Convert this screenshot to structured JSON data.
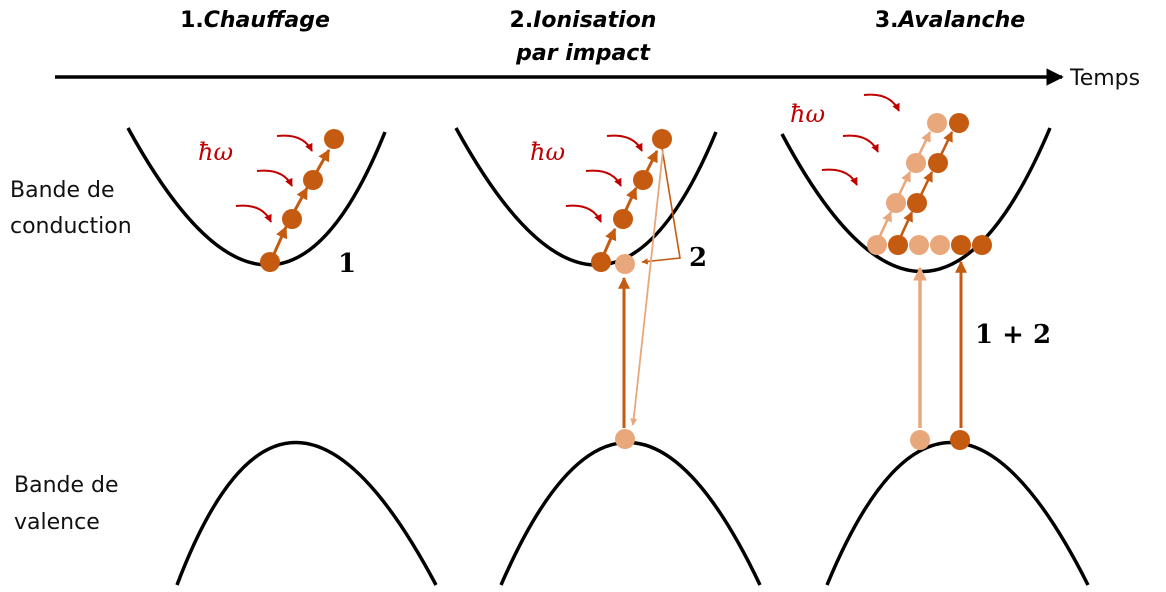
{
  "stages": [
    {
      "number": "1.",
      "name": "Chauffage",
      "line2": ""
    },
    {
      "number": "2.",
      "name": "Ionisation",
      "line2": "par impact"
    },
    {
      "number": "3.",
      "name": "Avalanche",
      "line2": ""
    }
  ],
  "time_label": "Temps",
  "bands": {
    "conduction": [
      "Bande de",
      "conduction"
    ],
    "valence": [
      "Bande de",
      "valence"
    ]
  },
  "photon_label": "ħω",
  "process_labels": {
    "stage1": "1",
    "stage2": "2",
    "stage3": "1 + 2"
  },
  "colors": {
    "electron": "#c55a11",
    "electron_light": "#e8a87c",
    "photon": "#c00000",
    "band": "#000000"
  }
}
